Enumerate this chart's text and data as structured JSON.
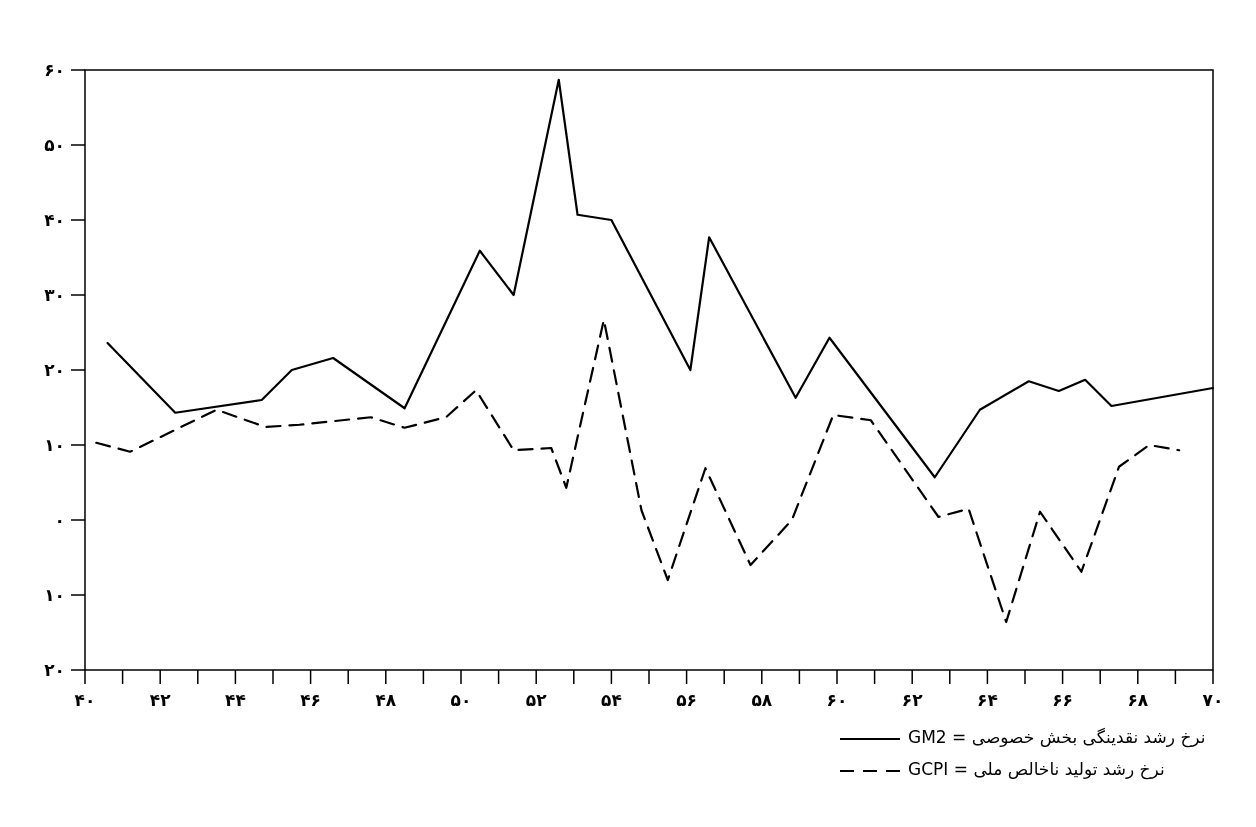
{
  "chart_data": {
    "type": "line",
    "xlim": [
      40,
      70
    ],
    "ylim": [
      -20,
      60
    ],
    "xticks": [
      {
        "value": 40,
        "label": "۴۰"
      },
      {
        "value": 41,
        "label": null
      },
      {
        "value": 42,
        "label": "۴۲"
      },
      {
        "value": 43,
        "label": null
      },
      {
        "value": 44,
        "label": "۴۴"
      },
      {
        "value": 45,
        "label": null
      },
      {
        "value": 46,
        "label": "۴۶"
      },
      {
        "value": 47,
        "label": null
      },
      {
        "value": 48,
        "label": "۴۸"
      },
      {
        "value": 49,
        "label": null
      },
      {
        "value": 50,
        "label": "۵۰"
      },
      {
        "value": 51,
        "label": null
      },
      {
        "value": 52,
        "label": "۵۲"
      },
      {
        "value": 53,
        "label": null
      },
      {
        "value": 54,
        "label": "۵۴"
      },
      {
        "value": 55,
        "label": null
      },
      {
        "value": 56,
        "label": "۵۶"
      },
      {
        "value": 57,
        "label": null
      },
      {
        "value": 58,
        "label": "۵۸"
      },
      {
        "value": 59,
        "label": null
      },
      {
        "value": 60,
        "label": "۶۰"
      },
      {
        "value": 61,
        "label": null
      },
      {
        "value": 62,
        "label": "۶۲"
      },
      {
        "value": 63,
        "label": null
      },
      {
        "value": 64,
        "label": "۶۴"
      },
      {
        "value": 65,
        "label": null
      },
      {
        "value": 66,
        "label": "۶۶"
      },
      {
        "value": 67,
        "label": null
      },
      {
        "value": 68,
        "label": "۶۸"
      },
      {
        "value": 69,
        "label": null
      },
      {
        "value": 70,
        "label": "۷۰"
      }
    ],
    "yticks": [
      {
        "value": -20,
        "label": "۲۰"
      },
      {
        "value": -10,
        "label": "۱۰"
      },
      {
        "value": 0,
        "label": "۰"
      },
      {
        "value": 10,
        "label": "۱۰"
      },
      {
        "value": 20,
        "label": "۲۰"
      },
      {
        "value": 30,
        "label": "۳۰"
      },
      {
        "value": 40,
        "label": "۴۰"
      },
      {
        "value": 50,
        "label": "۵۰"
      },
      {
        "value": 60,
        "label": "۶۰"
      }
    ],
    "legend": "bottom right",
    "grid": false,
    "marker": "none",
    "series": [
      {
        "name": "GM2 = نرخ رشد نقدینگی بخش خصوصی",
        "color": "#000000",
        "line_style": "solid",
        "x": [
          40.6,
          42.4,
          44.7,
          45.5,
          46.6,
          48.5,
          50.5,
          51.4,
          52.6,
          53.1,
          54.0,
          56.1,
          56.6,
          58.9,
          59.8,
          62.6,
          63.8,
          65.1,
          65.9,
          66.6,
          67.3,
          70
        ],
        "values": [
          23.6,
          14.3,
          16,
          20,
          21.6,
          14.9,
          35.9,
          30,
          58.7,
          40.7,
          40,
          20,
          37.7,
          16.3,
          24.3,
          5.7,
          14.7,
          18.5,
          17.2,
          18.7,
          15.2,
          17.6
        ]
      },
      {
        "name": "GCPI = نرخ رشد تولید ناخالص ملی",
        "color": "#000000",
        "line_style": "dashed",
        "x": [
          40.3,
          41.2,
          43.5,
          44.8,
          45.7,
          47.6,
          48.5,
          49.6,
          50.4,
          51.4,
          52.4,
          52.8,
          53.8,
          54.8,
          55.5,
          56.5,
          57.7,
          58.8,
          59.9,
          60.9,
          62.7,
          63.5,
          64.5,
          65.4,
          66.5,
          67.5,
          68.3,
          69.1
        ],
        "values": [
          10.3,
          9.1,
          14.7,
          12.4,
          12.7,
          13.7,
          12.3,
          13.7,
          17.3,
          9.3,
          9.6,
          4.3,
          26.7,
          1.3,
          -8,
          6.9,
          -6,
          0,
          14,
          13.3,
          0.4,
          1.5,
          -13.6,
          1.1,
          -6.9,
          7.1,
          10,
          9.3
        ]
      }
    ]
  }
}
